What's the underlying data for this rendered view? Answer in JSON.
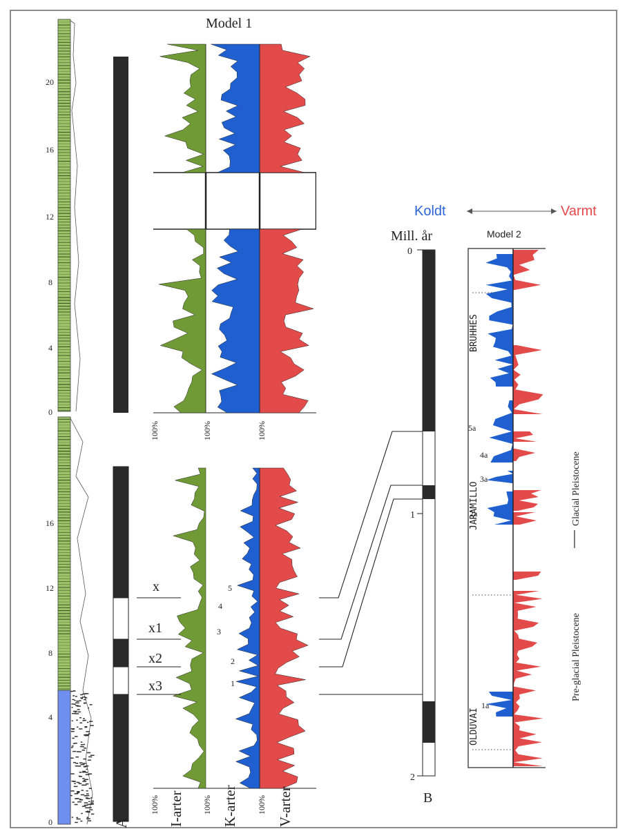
{
  "model1": {
    "title": "Model 1",
    "upper_depth_ticks": [
      "20",
      "16",
      "12",
      "8",
      "4",
      "0"
    ],
    "lower_depth_ticks": [
      "16",
      "12",
      "8",
      "4",
      "0"
    ],
    "percent_label": "100%",
    "labels": [
      "x",
      "x1",
      "x2",
      "x3"
    ],
    "events": [
      "5",
      "4",
      "3",
      "2",
      "1"
    ],
    "column_labels": [
      "I-arter",
      "K-arter",
      "V-arter"
    ],
    "column_letter": "A"
  },
  "model2": {
    "title": "Model 2",
    "legend_cold": "Koldt",
    "legend_warm": "Varmt",
    "time_axis_title": "Mill. år",
    "time_ticks": [
      "0",
      "1",
      "2"
    ],
    "column_letter": "B",
    "epochs": [
      "BRUHHES",
      "JARAMILLO",
      "OLDUVAI"
    ],
    "stages": [
      "5a",
      "4a",
      "3a",
      "2a",
      "1a"
    ],
    "period_glacial": "Glacial Pleistocene",
    "period_preglacial": "Pre-glacial Pleistocene"
  },
  "colors": {
    "green": "#6f9a35",
    "blue": "#1f5fd0",
    "red": "#e34a4a",
    "black": "#2a2a2a",
    "core_green": "#9cc26a",
    "core_blue": "#6f8ff0"
  }
}
